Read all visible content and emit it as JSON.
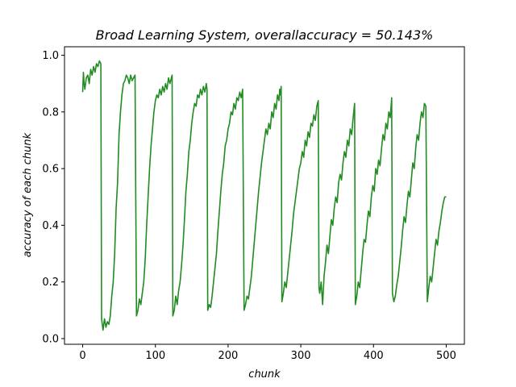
{
  "chart_data": {
    "type": "line",
    "title": "Broad Learning System,  overallaccuracy  =  50.143%",
    "xlabel": "chunk",
    "ylabel": "accuracy of each chunk",
    "xlim": [
      -25,
      525
    ],
    "ylim": [
      -0.02,
      1.03
    ],
    "xticks": [
      "0",
      "100",
      "200",
      "300",
      "400",
      "500"
    ],
    "yticks": [
      "0.0",
      "0.2",
      "0.4",
      "0.6",
      "0.8",
      "1.0"
    ],
    "grid": false,
    "series": [
      {
        "color": "#228b22",
        "points": [
          [
            0,
            0.87
          ],
          [
            1,
            0.94
          ],
          [
            2,
            0.9
          ],
          [
            3,
            0.88
          ],
          [
            5,
            0.92
          ],
          [
            7,
            0.93
          ],
          [
            9,
            0.9
          ],
          [
            11,
            0.95
          ],
          [
            13,
            0.93
          ],
          [
            15,
            0.96
          ],
          [
            17,
            0.94
          ],
          [
            19,
            0.97
          ],
          [
            21,
            0.96
          ],
          [
            23,
            0.98
          ],
          [
            25,
            0.97
          ],
          [
            26,
            0.07
          ],
          [
            27,
            0.05
          ],
          [
            28,
            0.03
          ],
          [
            30,
            0.07
          ],
          [
            32,
            0.04
          ],
          [
            34,
            0.06
          ],
          [
            36,
            0.05
          ],
          [
            38,
            0.08
          ],
          [
            40,
            0.15
          ],
          [
            42,
            0.2
          ],
          [
            44,
            0.3
          ],
          [
            46,
            0.46
          ],
          [
            48,
            0.55
          ],
          [
            50,
            0.72
          ],
          [
            52,
            0.8
          ],
          [
            54,
            0.86
          ],
          [
            56,
            0.9
          ],
          [
            58,
            0.91
          ],
          [
            60,
            0.93
          ],
          [
            62,
            0.92
          ],
          [
            64,
            0.9
          ],
          [
            66,
            0.93
          ],
          [
            68,
            0.91
          ],
          [
            70,
            0.92
          ],
          [
            72,
            0.93
          ],
          [
            74,
            0.08
          ],
          [
            76,
            0.1
          ],
          [
            78,
            0.14
          ],
          [
            80,
            0.12
          ],
          [
            82,
            0.16
          ],
          [
            84,
            0.2
          ],
          [
            86,
            0.28
          ],
          [
            88,
            0.4
          ],
          [
            90,
            0.5
          ],
          [
            92,
            0.6
          ],
          [
            94,
            0.68
          ],
          [
            96,
            0.74
          ],
          [
            98,
            0.8
          ],
          [
            100,
            0.84
          ],
          [
            102,
            0.86
          ],
          [
            104,
            0.85
          ],
          [
            106,
            0.88
          ],
          [
            108,
            0.86
          ],
          [
            110,
            0.89
          ],
          [
            112,
            0.87
          ],
          [
            114,
            0.9
          ],
          [
            116,
            0.88
          ],
          [
            118,
            0.92
          ],
          [
            120,
            0.9
          ],
          [
            123,
            0.93
          ],
          [
            124,
            0.08
          ],
          [
            126,
            0.1
          ],
          [
            128,
            0.15
          ],
          [
            130,
            0.12
          ],
          [
            132,
            0.17
          ],
          [
            134,
            0.2
          ],
          [
            136,
            0.26
          ],
          [
            138,
            0.33
          ],
          [
            140,
            0.42
          ],
          [
            142,
            0.52
          ],
          [
            144,
            0.58
          ],
          [
            146,
            0.66
          ],
          [
            148,
            0.7
          ],
          [
            150,
            0.76
          ],
          [
            152,
            0.8
          ],
          [
            154,
            0.83
          ],
          [
            156,
            0.82
          ],
          [
            158,
            0.86
          ],
          [
            160,
            0.85
          ],
          [
            162,
            0.88
          ],
          [
            164,
            0.86
          ],
          [
            166,
            0.89
          ],
          [
            168,
            0.87
          ],
          [
            170,
            0.9
          ],
          [
            171,
            0.88
          ],
          [
            172,
            0.1
          ],
          [
            174,
            0.12
          ],
          [
            176,
            0.11
          ],
          [
            178,
            0.15
          ],
          [
            180,
            0.2
          ],
          [
            182,
            0.25
          ],
          [
            184,
            0.3
          ],
          [
            186,
            0.38
          ],
          [
            188,
            0.45
          ],
          [
            190,
            0.52
          ],
          [
            192,
            0.58
          ],
          [
            194,
            0.62
          ],
          [
            196,
            0.68
          ],
          [
            198,
            0.7
          ],
          [
            200,
            0.74
          ],
          [
            202,
            0.76
          ],
          [
            204,
            0.8
          ],
          [
            206,
            0.79
          ],
          [
            208,
            0.83
          ],
          [
            210,
            0.81
          ],
          [
            212,
            0.85
          ],
          [
            214,
            0.84
          ],
          [
            216,
            0.87
          ],
          [
            218,
            0.85
          ],
          [
            220,
            0.88
          ],
          [
            222,
            0.1
          ],
          [
            224,
            0.12
          ],
          [
            226,
            0.15
          ],
          [
            228,
            0.14
          ],
          [
            230,
            0.18
          ],
          [
            232,
            0.22
          ],
          [
            234,
            0.28
          ],
          [
            236,
            0.34
          ],
          [
            238,
            0.4
          ],
          [
            240,
            0.46
          ],
          [
            242,
            0.52
          ],
          [
            244,
            0.57
          ],
          [
            246,
            0.62
          ],
          [
            248,
            0.66
          ],
          [
            250,
            0.7
          ],
          [
            252,
            0.74
          ],
          [
            254,
            0.72
          ],
          [
            256,
            0.76
          ],
          [
            258,
            0.74
          ],
          [
            260,
            0.8
          ],
          [
            262,
            0.78
          ],
          [
            264,
            0.83
          ],
          [
            266,
            0.81
          ],
          [
            268,
            0.86
          ],
          [
            270,
            0.84
          ],
          [
            271,
            0.88
          ],
          [
            272,
            0.86
          ],
          [
            273,
            0.89
          ],
          [
            274,
            0.13
          ],
          [
            276,
            0.16
          ],
          [
            278,
            0.2
          ],
          [
            280,
            0.18
          ],
          [
            282,
            0.23
          ],
          [
            284,
            0.28
          ],
          [
            286,
            0.33
          ],
          [
            288,
            0.38
          ],
          [
            290,
            0.44
          ],
          [
            292,
            0.48
          ],
          [
            294,
            0.52
          ],
          [
            296,
            0.56
          ],
          [
            298,
            0.6
          ],
          [
            300,
            0.62
          ],
          [
            302,
            0.66
          ],
          [
            304,
            0.64
          ],
          [
            306,
            0.7
          ],
          [
            308,
            0.68
          ],
          [
            310,
            0.73
          ],
          [
            312,
            0.71
          ],
          [
            314,
            0.76
          ],
          [
            316,
            0.75
          ],
          [
            318,
            0.79
          ],
          [
            320,
            0.77
          ],
          [
            322,
            0.82
          ],
          [
            324,
            0.84
          ],
          [
            325,
            0.18
          ],
          [
            326,
            0.16
          ],
          [
            328,
            0.2
          ],
          [
            330,
            0.12
          ],
          [
            332,
            0.22
          ],
          [
            334,
            0.27
          ],
          [
            336,
            0.33
          ],
          [
            338,
            0.3
          ],
          [
            340,
            0.36
          ],
          [
            342,
            0.42
          ],
          [
            344,
            0.4
          ],
          [
            346,
            0.46
          ],
          [
            348,
            0.5
          ],
          [
            350,
            0.48
          ],
          [
            352,
            0.55
          ],
          [
            354,
            0.58
          ],
          [
            356,
            0.56
          ],
          [
            358,
            0.62
          ],
          [
            360,
            0.66
          ],
          [
            362,
            0.64
          ],
          [
            364,
            0.7
          ],
          [
            366,
            0.68
          ],
          [
            368,
            0.74
          ],
          [
            370,
            0.72
          ],
          [
            372,
            0.78
          ],
          [
            374,
            0.83
          ],
          [
            375,
            0.12
          ],
          [
            377,
            0.15
          ],
          [
            379,
            0.2
          ],
          [
            381,
            0.18
          ],
          [
            383,
            0.24
          ],
          [
            385,
            0.3
          ],
          [
            387,
            0.35
          ],
          [
            389,
            0.34
          ],
          [
            391,
            0.4
          ],
          [
            393,
            0.45
          ],
          [
            395,
            0.43
          ],
          [
            397,
            0.5
          ],
          [
            399,
            0.54
          ],
          [
            401,
            0.52
          ],
          [
            403,
            0.6
          ],
          [
            405,
            0.58
          ],
          [
            407,
            0.63
          ],
          [
            409,
            0.61
          ],
          [
            411,
            0.67
          ],
          [
            413,
            0.72
          ],
          [
            415,
            0.7
          ],
          [
            417,
            0.76
          ],
          [
            419,
            0.74
          ],
          [
            421,
            0.8
          ],
          [
            423,
            0.78
          ],
          [
            425,
            0.85
          ],
          [
            426,
            0.16
          ],
          [
            428,
            0.13
          ],
          [
            430,
            0.15
          ],
          [
            432,
            0.19
          ],
          [
            434,
            0.22
          ],
          [
            436,
            0.27
          ],
          [
            438,
            0.32
          ],
          [
            440,
            0.38
          ],
          [
            442,
            0.43
          ],
          [
            444,
            0.41
          ],
          [
            446,
            0.47
          ],
          [
            448,
            0.52
          ],
          [
            450,
            0.5
          ],
          [
            452,
            0.56
          ],
          [
            454,
            0.62
          ],
          [
            456,
            0.6
          ],
          [
            458,
            0.67
          ],
          [
            460,
            0.72
          ],
          [
            462,
            0.7
          ],
          [
            464,
            0.76
          ],
          [
            466,
            0.8
          ],
          [
            468,
            0.78
          ],
          [
            470,
            0.83
          ],
          [
            472,
            0.82
          ],
          [
            474,
            0.13
          ],
          [
            476,
            0.18
          ],
          [
            478,
            0.22
          ],
          [
            480,
            0.2
          ],
          [
            482,
            0.25
          ],
          [
            484,
            0.3
          ],
          [
            486,
            0.35
          ],
          [
            488,
            0.33
          ],
          [
            490,
            0.38
          ],
          [
            492,
            0.41
          ],
          [
            494,
            0.45
          ],
          [
            496,
            0.48
          ],
          [
            498,
            0.5
          ],
          [
            500,
            0.5
          ]
        ]
      }
    ]
  }
}
